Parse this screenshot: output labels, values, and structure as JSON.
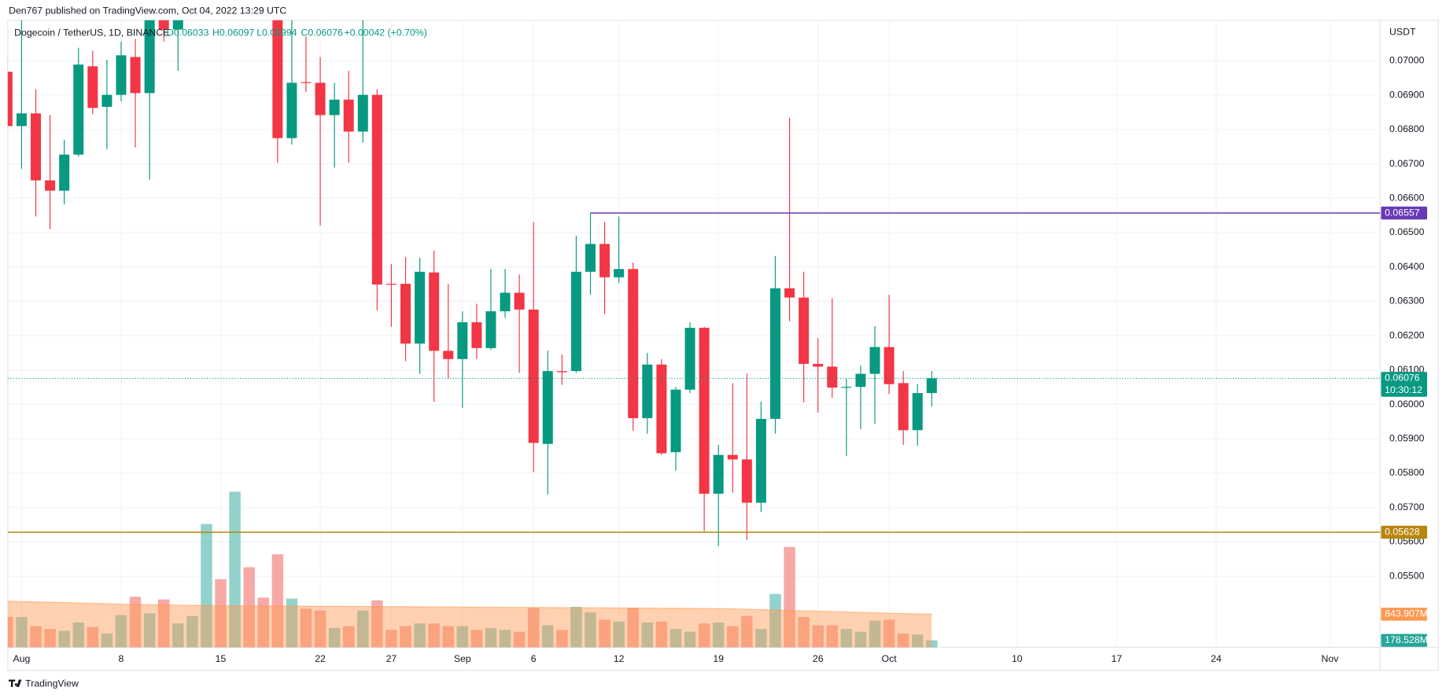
{
  "header": {
    "publisher": "Den767 published on TradingView.com, Oct 04, 2022 13:29 UTC",
    "logo": "TradingView"
  },
  "chart_data": [
    {
      "type": "candlestick",
      "title": "Dogecoin / TetherUS, 1D, BINANCE",
      "legend": {
        "open": "O0.06033",
        "high": "H0.06097",
        "low": "L0.05994",
        "close": "C0.06076",
        "change": "+0.00042 (+0.70%)"
      },
      "y_unit": "USDT",
      "x": [
        -1,
        0,
        1,
        2,
        3,
        4,
        5,
        6,
        7,
        8,
        9,
        10,
        11,
        18,
        19,
        20,
        21,
        22,
        23,
        24,
        25,
        26,
        27,
        28,
        29,
        30,
        31,
        32,
        33,
        34,
        35,
        36,
        37,
        38,
        39,
        40,
        41,
        42,
        43,
        44,
        45,
        46,
        47,
        48,
        49,
        50,
        51,
        52,
        53,
        54,
        55,
        56,
        57,
        58,
        59,
        60,
        61,
        62,
        63,
        64
      ],
      "open": [
        0.06968,
        0.0681,
        0.06847,
        0.06652,
        0.06622,
        0.06727,
        0.06984,
        0.06866,
        0.06901,
        0.07011,
        0.06906,
        0.07123,
        0.07091,
        0.0715,
        0.06775,
        0.06938,
        0.06936,
        0.06842,
        0.06887,
        0.06794,
        0.06901,
        0.06351,
        0.06351,
        0.06177,
        0.06384,
        0.06156,
        0.06132,
        0.06239,
        0.06164,
        0.06271,
        0.06325,
        0.06276,
        0.05885,
        0.06097,
        0.06097,
        0.06386,
        0.06467,
        0.0637,
        0.06394,
        0.0596,
        0.06116,
        0.05861,
        0.06043,
        0.06223,
        0.0574,
        0.05853,
        0.0584,
        0.05714,
        0.05958,
        0.06338,
        0.06311,
        0.06118,
        0.0611,
        0.06049,
        0.06051,
        0.06089,
        0.06167,
        0.06062,
        0.05925,
        0.06033
      ],
      "high": [
        0.07016,
        0.07118,
        0.06917,
        0.06842,
        0.0677,
        0.07038,
        0.07029,
        0.07003,
        0.07056,
        0.07064,
        0.07163,
        0.07155,
        0.07163,
        0.07177,
        0.07118,
        0.0707,
        0.07011,
        0.06936,
        0.06971,
        0.07118,
        0.06917,
        0.06408,
        0.06429,
        0.06427,
        0.06448,
        0.06351,
        0.06271,
        0.06293,
        0.06394,
        0.06394,
        0.06378,
        0.06531,
        0.06156,
        0.06145,
        0.06491,
        0.06558,
        0.06531,
        0.06547,
        0.06413,
        0.0615,
        0.06132,
        0.06051,
        0.06239,
        0.06226,
        0.05882,
        0.06062,
        0.06089,
        0.06008,
        0.06432,
        0.06834,
        0.06386,
        0.06193,
        0.06309,
        0.06075,
        0.06113,
        0.06228,
        0.06319,
        0.06097,
        0.06059,
        0.06097
      ],
      "low": [
        0.06802,
        0.06686,
        0.06547,
        0.0651,
        0.06582,
        0.06721,
        0.06845,
        0.06743,
        0.06882,
        0.06748,
        0.06654,
        0.07056,
        0.06971,
        0.06703,
        0.06756,
        0.06909,
        0.0652,
        0.06689,
        0.06703,
        0.06762,
        0.06274,
        0.06226,
        0.06126,
        0.06089,
        0.06008,
        0.06075,
        0.0599,
        0.06132,
        0.06159,
        0.06252,
        0.06092,
        0.05802,
        0.05738,
        0.06057,
        0.06092,
        0.06319,
        0.06263,
        0.06354,
        0.05923,
        0.05915,
        0.05853,
        0.05807,
        0.06033,
        0.05631,
        0.05588,
        0.05743,
        0.05606,
        0.05687,
        0.05915,
        0.06242,
        0.06006,
        0.05976,
        0.06019,
        0.0585,
        0.05928,
        0.05944,
        0.0603,
        0.05882,
        0.0588,
        0.05994
      ],
      "close": [
        0.0681,
        0.06847,
        0.06652,
        0.06622,
        0.06727,
        0.06989,
        0.06863,
        0.06901,
        0.07016,
        0.06906,
        0.07137,
        0.07091,
        0.07129,
        0.06775,
        0.06936,
        0.06936,
        0.06842,
        0.06887,
        0.06794,
        0.06901,
        0.06349,
        0.06349,
        0.06177,
        0.06386,
        0.06156,
        0.06132,
        0.06239,
        0.06164,
        0.06271,
        0.06325,
        0.06276,
        0.05888,
        0.06097,
        0.06094,
        0.06386,
        0.06467,
        0.0637,
        0.06394,
        0.0596,
        0.06116,
        0.05858,
        0.06043,
        0.06223,
        0.0574,
        0.05853,
        0.0584,
        0.05714,
        0.05958,
        0.06338,
        0.06311,
        0.06118,
        0.0611,
        0.06049,
        0.06051,
        0.06089,
        0.06167,
        0.06059,
        0.05925,
        0.06033,
        0.06076
      ],
      "up_color": "#089981",
      "down_color": "#f23645",
      "xlim": [
        -0.97,
        95.53
      ],
      "xticks": [
        {
          "value": 0,
          "label": "Aug"
        },
        {
          "value": 7,
          "label": "8"
        },
        {
          "value": 14,
          "label": "15"
        },
        {
          "value": 21,
          "label": "22"
        },
        {
          "value": 26,
          "label": "27"
        },
        {
          "value": 31,
          "label": "Sep"
        },
        {
          "value": 36,
          "label": "6"
        },
        {
          "value": 42,
          "label": "12"
        },
        {
          "value": 49,
          "label": "19"
        },
        {
          "value": 56,
          "label": "26"
        },
        {
          "value": 61,
          "label": "Oct"
        },
        {
          "value": 70,
          "label": "10"
        },
        {
          "value": 77,
          "label": "17"
        },
        {
          "value": 84,
          "label": "24"
        },
        {
          "value": 92,
          "label": "Nov"
        }
      ],
      "ylim": [
        0.05293,
        0.07118
      ],
      "yticks": [
        {
          "value": 0.055,
          "label": "0.05500"
        },
        {
          "value": 0.056,
          "label": "0.05600"
        },
        {
          "value": 0.057,
          "label": "0.05700"
        },
        {
          "value": 0.058,
          "label": "0.05800"
        },
        {
          "value": 0.059,
          "label": "0.05900"
        },
        {
          "value": 0.06,
          "label": "0.06000"
        },
        {
          "value": 0.061,
          "label": "0.06100"
        },
        {
          "value": 0.062,
          "label": "0.06200"
        },
        {
          "value": 0.063,
          "label": "0.06300"
        },
        {
          "value": 0.064,
          "label": "0.06400"
        },
        {
          "value": 0.065,
          "label": "0.06500"
        },
        {
          "value": 0.066,
          "label": "0.06600"
        },
        {
          "value": 0.067,
          "label": "0.06700"
        },
        {
          "value": 0.068,
          "label": "0.06800"
        },
        {
          "value": 0.069,
          "label": "0.06900"
        },
        {
          "value": 0.07,
          "label": "0.07000"
        }
      ],
      "grid": true,
      "price_lines": [
        {
          "value": 0.06557,
          "from": 40,
          "color": "#673ab7"
        },
        {
          "value": 0.05628,
          "color": "#b8860b"
        }
      ],
      "countdown": "10:30:12"
    },
    {
      "type": "volume",
      "x": [
        -1,
        0,
        1,
        2,
        3,
        4,
        5,
        6,
        7,
        8,
        9,
        10,
        11,
        12,
        13,
        14,
        15,
        16,
        17,
        18,
        19,
        20,
        21,
        22,
        23,
        24,
        25,
        26,
        27,
        28,
        29,
        30,
        31,
        32,
        33,
        34,
        35,
        36,
        37,
        38,
        39,
        40,
        41,
        42,
        43,
        44,
        45,
        46,
        47,
        48,
        49,
        50,
        51,
        52,
        53,
        54,
        55,
        56,
        57,
        58,
        59,
        60,
        61,
        62,
        63,
        64
      ],
      "values": [
        774,
        774,
        539,
        469,
        422,
        633,
        516,
        352,
        820,
        1289,
        867,
        1219,
        609,
        797,
        3141,
        1735,
        3962,
        2039,
        1266,
        2368,
        1242,
        985,
        938,
        492,
        539,
        938,
        1195,
        445,
        539,
        609,
        609,
        539,
        539,
        445,
        492,
        445,
        398,
        1008,
        563,
        445,
        1031,
        891,
        703,
        656,
        1008,
        633,
        656,
        469,
        398,
        609,
        633,
        539,
        797,
        469,
        1360,
        2555,
        774,
        563,
        563,
        469,
        398,
        680,
        703,
        352,
        328,
        178.528
      ],
      "value_labels": [
        null,
        null,
        null,
        null,
        null,
        null,
        null,
        null,
        null,
        null,
        null,
        null,
        null,
        null,
        null,
        null,
        null,
        null,
        null,
        null,
        null,
        null,
        null,
        null,
        null,
        null,
        null,
        null,
        null,
        null,
        null,
        null,
        null,
        null,
        null,
        null,
        null,
        null,
        null,
        null,
        null,
        null,
        null,
        null,
        null,
        null,
        null,
        null,
        null,
        null,
        null,
        null,
        null,
        null,
        null,
        null,
        null,
        null,
        null,
        null,
        null,
        null,
        null,
        null,
        null,
        "178.528M"
      ],
      "colors": [
        "#ef535080",
        "#26a69a80",
        "#ef535080",
        "#ef535080",
        "#26a69a80",
        "#26a69a80",
        "#ef535080",
        "#26a69a80",
        "#26a69a80",
        "#ef535080",
        "#26a69a80",
        "#ef535080",
        "#26a69a80",
        "#26a69a80",
        "#26a69a80",
        "#ef535080",
        "#26a69a80",
        "#ef535080",
        "#ef535080",
        "#ef535080",
        "#26a69a80",
        "#ef535080",
        "#ef535080",
        "#26a69a80",
        "#ef535080",
        "#26a69a80",
        "#ef535080",
        "#ef535080",
        "#ef535080",
        "#26a69a80",
        "#ef535080",
        "#ef535080",
        "#26a69a80",
        "#ef535080",
        "#26a69a80",
        "#26a69a80",
        "#ef535080",
        "#ef535080",
        "#26a69a80",
        "#ef535080",
        "#26a69a80",
        "#26a69a80",
        "#ef535080",
        "#26a69a80",
        "#ef535080",
        "#26a69a80",
        "#ef535080",
        "#26a69a80",
        "#26a69a80",
        "#ef535080",
        "#26a69a80",
        "#ef535080",
        "#ef535080",
        "#26a69a80",
        "#26a69a80",
        "#ef535080",
        "#ef535080",
        "#ef535080",
        "#ef535080",
        "#26a69a80",
        "#26a69a80",
        "#26a69a80",
        "#ef535080",
        "#ef535080",
        "#26a69a80",
        "#26a69a80"
      ],
      "label_color": "#26a69a",
      "ma": {
        "values": [
          1172,
          1165,
          1158,
          1150,
          1140,
          1130,
          1120,
          1110,
          1100,
          1090,
          1085,
          1080,
          1075,
          1070,
          1065,
          1060,
          1058,
          1056,
          1054,
          1052,
          1050,
          1048,
          1046,
          1044,
          1042,
          1040,
          1038,
          1036,
          1034,
          1032,
          1030,
          1028,
          1025,
          1022,
          1020,
          1018,
          1016,
          1014,
          1012,
          1010,
          1008,
          1006,
          1004,
          1002,
          1000,
          998,
          996,
          994,
          992,
          990,
          985,
          980,
          970,
          960,
          950,
          940,
          930,
          920,
          910,
          900,
          890,
          880,
          870,
          860,
          852,
          843.907
        ],
        "value_labels": [
          null,
          null,
          null,
          null,
          null,
          null,
          null,
          null,
          null,
          null,
          null,
          null,
          null,
          null,
          null,
          null,
          null,
          null,
          null,
          null,
          null,
          null,
          null,
          null,
          null,
          null,
          null,
          null,
          null,
          null,
          null,
          null,
          null,
          null,
          null,
          null,
          null,
          null,
          null,
          null,
          null,
          null,
          null,
          null,
          null,
          null,
          null,
          null,
          null,
          null,
          null,
          null,
          null,
          null,
          null,
          null,
          null,
          null,
          null,
          null,
          null,
          null,
          null,
          null,
          null,
          "843.907M"
        ],
        "color": "#ff9850"
      },
      "ylim": [
        0,
        15960
      ]
    }
  ]
}
